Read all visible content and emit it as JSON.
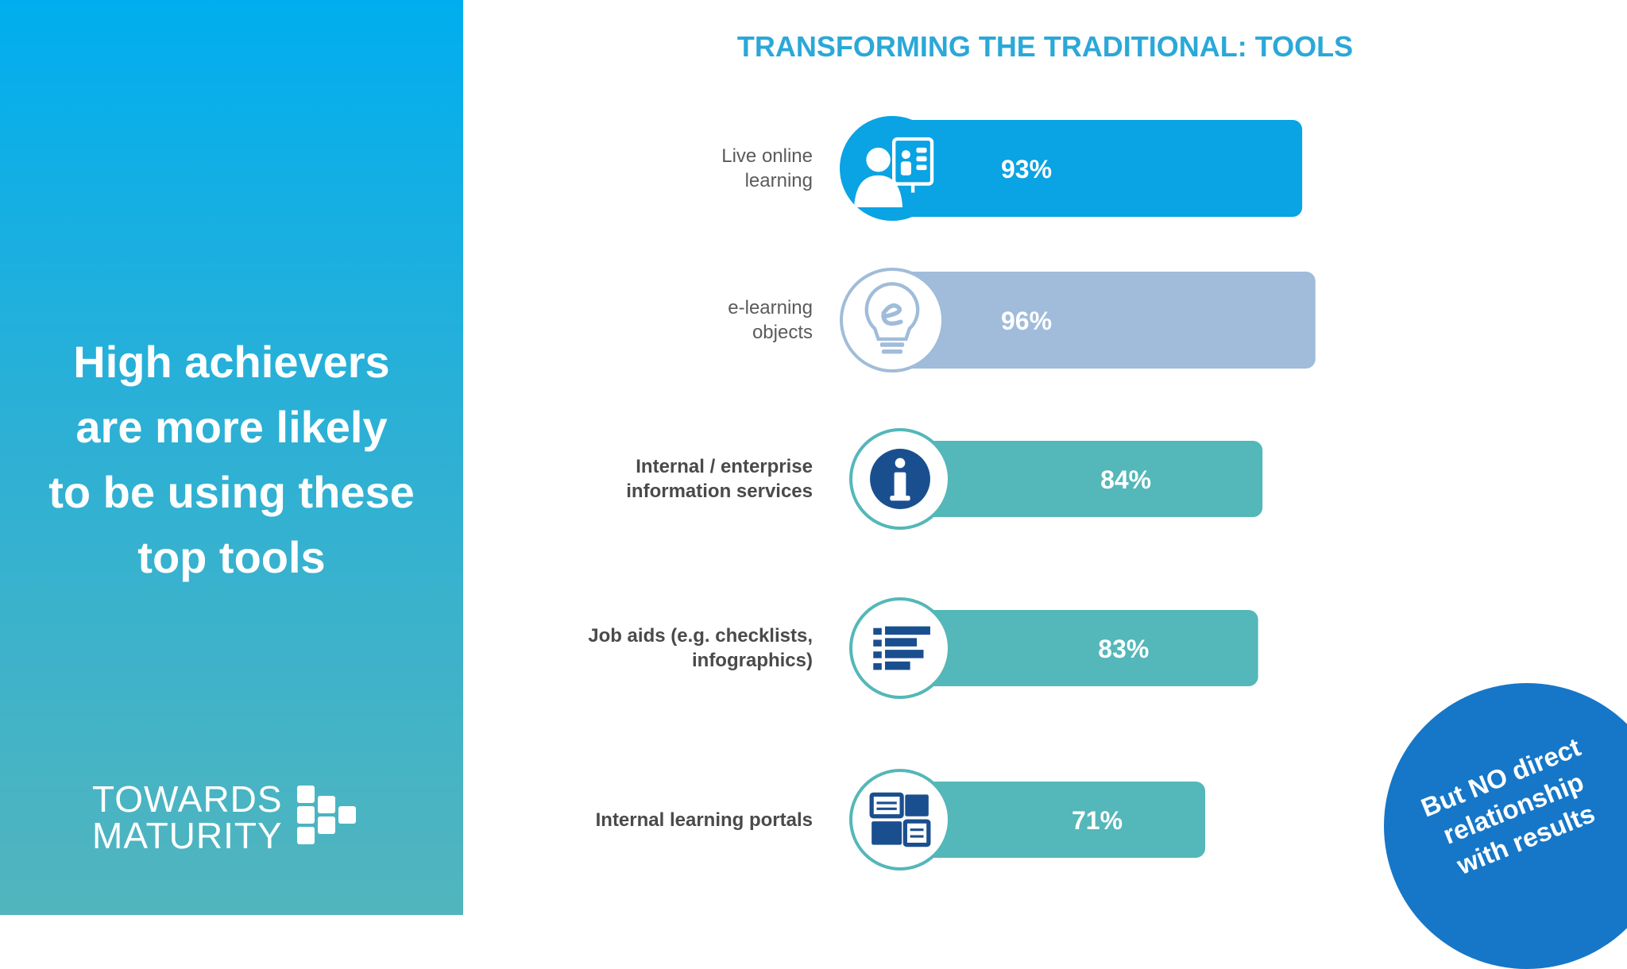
{
  "left_panel": {
    "headline_lines": [
      "High achievers",
      "are more likely",
      "to be using these",
      "top tools"
    ],
    "logo_lines": [
      "TOWARDS",
      "MATURITY"
    ]
  },
  "chart_data": {
    "type": "bar",
    "orientation": "horizontal",
    "title": "TRANSFORMING THE TRADITIONAL: TOOLS",
    "categories": [
      {
        "lines": [
          "Live online",
          "learning"
        ],
        "icon": "video-conference-icon"
      },
      {
        "lines": [
          "e-learning",
          "objects"
        ],
        "icon": "lightbulb-e-icon"
      },
      {
        "lines": [
          "Internal / enterprise",
          "information services"
        ],
        "icon": "info-icon"
      },
      {
        "lines": [
          "Job aids (e.g. checklists,",
          "infographics)"
        ],
        "icon": "checklist-icon"
      },
      {
        "lines": [
          "Internal learning portals"
        ],
        "icon": "portal-icon"
      }
    ],
    "values": [
      93,
      96,
      84,
      83,
      71
    ],
    "value_labels": [
      "93%",
      "96%",
      "84%",
      "83%",
      "71%"
    ],
    "unit": "%",
    "bar_colors": [
      "#0aa3e4",
      "#a0bcda",
      "#54b7b9",
      "#54b7b9",
      "#54b7b9"
    ],
    "grid": false
  },
  "badge": {
    "lines": [
      "But NO direct",
      "relationship",
      "with results"
    ],
    "color": "#1677c8"
  }
}
